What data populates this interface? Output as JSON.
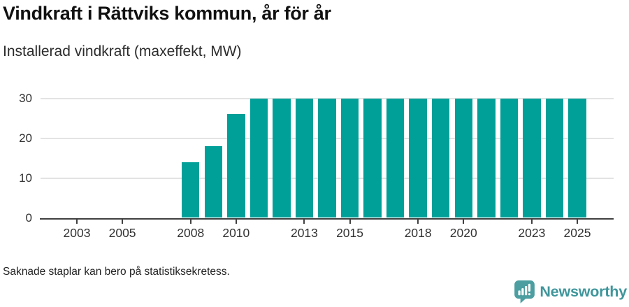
{
  "header": {
    "title": "Vindkraft i Rättviks kommun, år för år",
    "subtitle": "Installerad vindkraft (maxeffekt, MW)"
  },
  "chart_data": {
    "type": "bar",
    "title": "Vindkraft i Rättviks kommun, år för år",
    "subtitle": "Installerad vindkraft (maxeffekt, MW)",
    "xlabel": "",
    "ylabel": "Installerad vindkraft (maxeffekt, MW)",
    "ylim": [
      0,
      30
    ],
    "yticks": [
      0,
      10,
      20,
      30
    ],
    "xticks": [
      2003,
      2005,
      2008,
      2010,
      2013,
      2015,
      2018,
      2020,
      2023,
      2025
    ],
    "grid": true,
    "legend": "none",
    "categories": [
      2002,
      2003,
      2004,
      2005,
      2006,
      2007,
      2008,
      2009,
      2010,
      2011,
      2012,
      2013,
      2014,
      2015,
      2016,
      2017,
      2018,
      2019,
      2020,
      2021,
      2022,
      2023,
      2024,
      2025
    ],
    "values": [
      null,
      null,
      null,
      null,
      null,
      null,
      14,
      18,
      26,
      30,
      30,
      30,
      30,
      30,
      30,
      30,
      30,
      30,
      30,
      30,
      30,
      30,
      30,
      30
    ]
  },
  "footer": {
    "note": "Saknade staplar kan bero på statistiksekretess.",
    "brand": "Newsworthy"
  },
  "colors": {
    "bar": "#00a099",
    "grid": "#e3e3e3",
    "axis": "#404040",
    "tick_text": "#333333",
    "brand_text": "#3f969b",
    "logo": "#4c9ea0"
  }
}
